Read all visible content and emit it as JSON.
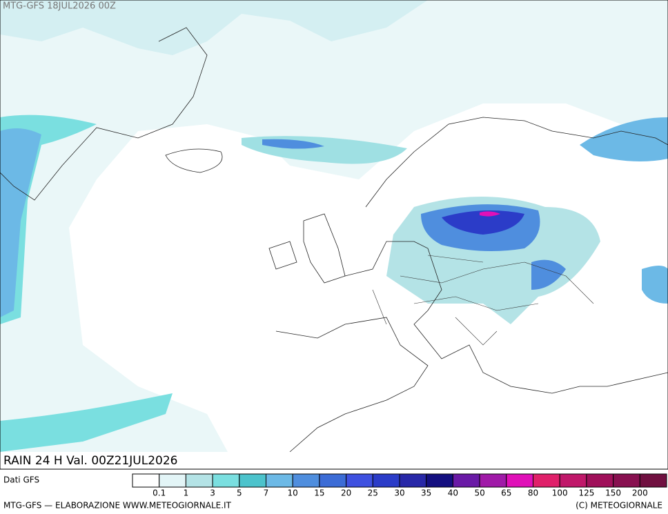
{
  "header": {
    "title": "MTG-GFS 18JUL2026 00Z"
  },
  "map": {
    "caption": "RAIN 24 H Val. 00Z21JUL2026"
  },
  "legend": {
    "source": "Dati GFS",
    "colors": [
      "#ffffff",
      "#e3f5f7",
      "#b4e3e6",
      "#7adfe0",
      "#4cc3cc",
      "#6cb9e6",
      "#4f8ede",
      "#3c6cd6",
      "#3f51e0",
      "#2b3cc8",
      "#2828a8",
      "#140f80",
      "#6a1aa6",
      "#a01aa8",
      "#e010b8",
      "#e0206a",
      "#c0186a",
      "#a0105a",
      "#881050",
      "#701040"
    ],
    "labels": [
      "0.1",
      "1",
      "3",
      "5",
      "7",
      "10",
      "15",
      "20",
      "25",
      "30",
      "35",
      "40",
      "50",
      "65",
      "80",
      "100",
      "125",
      "150",
      "200"
    ]
  },
  "footer": {
    "left": "MTG-GFS — ELABORAZIONE WWW.METEOGIORNALE.IT",
    "right": "(C) METEOGIORNALE"
  }
}
